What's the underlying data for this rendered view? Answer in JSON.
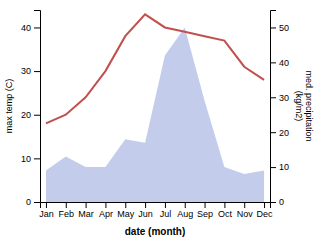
{
  "chart_data": {
    "type": "line",
    "categories": [
      "Jan",
      "Feb",
      "Mar",
      "Apr",
      "May",
      "Jun",
      "Jul",
      "Aug",
      "Sep",
      "Oct",
      "Nov",
      "Dec"
    ],
    "xlabel": "date (month)",
    "ylabel": "max temp (C)",
    "y2label": "med. precipitation\n(kg/m2)",
    "ylim": [
      0,
      44
    ],
    "yticks": [
      0,
      10,
      20,
      30,
      40
    ],
    "y2lim": [
      0,
      55
    ],
    "y2ticks": [
      0,
      10,
      20,
      30,
      40,
      50
    ],
    "series": [
      {
        "type": "area",
        "axis": "y2",
        "color": "#b8c4e8",
        "values": [
          9,
          13,
          10,
          10,
          18,
          17,
          42,
          50,
          29,
          10,
          8,
          9
        ]
      },
      {
        "type": "line",
        "color": "#c0504d",
        "values": [
          18,
          20,
          24,
          30,
          38,
          43,
          40,
          39,
          38,
          37,
          31,
          28
        ]
      }
    ]
  }
}
